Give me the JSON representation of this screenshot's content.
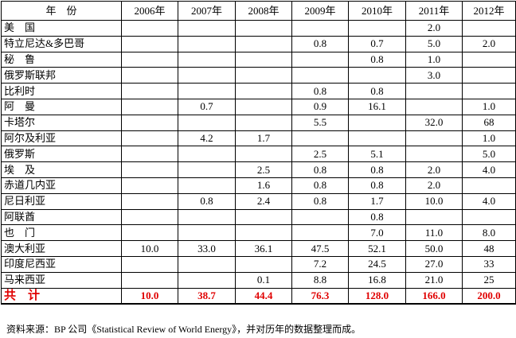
{
  "table": {
    "header": [
      "年　份",
      "2006年",
      "2007年",
      "2008年",
      "2009年",
      "2010年",
      "2011年",
      "2012年"
    ],
    "rows": [
      [
        "美　国",
        "",
        "",
        "",
        "",
        "",
        "2.0",
        ""
      ],
      [
        "特立尼达&多巴哥",
        "",
        "",
        "",
        "0.8",
        "0.7",
        "5.0",
        "2.0"
      ],
      [
        "秘　鲁",
        "",
        "",
        "",
        "",
        "0.8",
        "1.0",
        ""
      ],
      [
        "俄罗斯联邦",
        "",
        "",
        "",
        "",
        "",
        "3.0",
        ""
      ],
      [
        "比利时",
        "",
        "",
        "",
        "0.8",
        "0.8",
        "",
        ""
      ],
      [
        "阿　曼",
        "",
        "0.7",
        "",
        "0.9",
        "16.1",
        "",
        "1.0"
      ],
      [
        "卡塔尔",
        "",
        "",
        "",
        "5.5",
        "",
        "32.0",
        "68"
      ],
      [
        "阿尔及利亚",
        "",
        "4.2",
        "1.7",
        "",
        "",
        "",
        "1.0"
      ],
      [
        "俄罗斯",
        "",
        "",
        "",
        "2.5",
        "5.1",
        "",
        "5.0"
      ],
      [
        "埃　及",
        "",
        "",
        "2.5",
        "0.8",
        "0.8",
        "2.0",
        "4.0"
      ],
      [
        "赤道几内亚",
        "",
        "",
        "1.6",
        "0.8",
        "0.8",
        "2.0",
        ""
      ],
      [
        "尼日利亚",
        "",
        "0.8",
        "2.4",
        "0.8",
        "1.7",
        "10.0",
        "4.0"
      ],
      [
        "阿联酋",
        "",
        "",
        "",
        "",
        "0.8",
        "",
        ""
      ],
      [
        "也　门",
        "",
        "",
        "",
        "",
        "7.0",
        "11.0",
        "8.0"
      ],
      [
        "澳大利亚",
        "10.0",
        "33.0",
        "36.1",
        "47.5",
        "52.1",
        "50.0",
        "48"
      ],
      [
        "印度尼西亚",
        "",
        "",
        "",
        "7.2",
        "24.5",
        "27.0",
        "33"
      ],
      [
        "马来西亚",
        "",
        "",
        "0.1",
        "8.8",
        "16.8",
        "21.0",
        "25"
      ]
    ],
    "total": [
      "共　计",
      "10.0",
      "38.7",
      "44.4",
      "76.3",
      "128.0",
      "166.0",
      "200.0"
    ]
  },
  "source": "资料来源：BP 公司《Statistical Review of World Energy》，并对历年的数据整理而成。",
  "colors": {
    "total": "#e00000"
  }
}
